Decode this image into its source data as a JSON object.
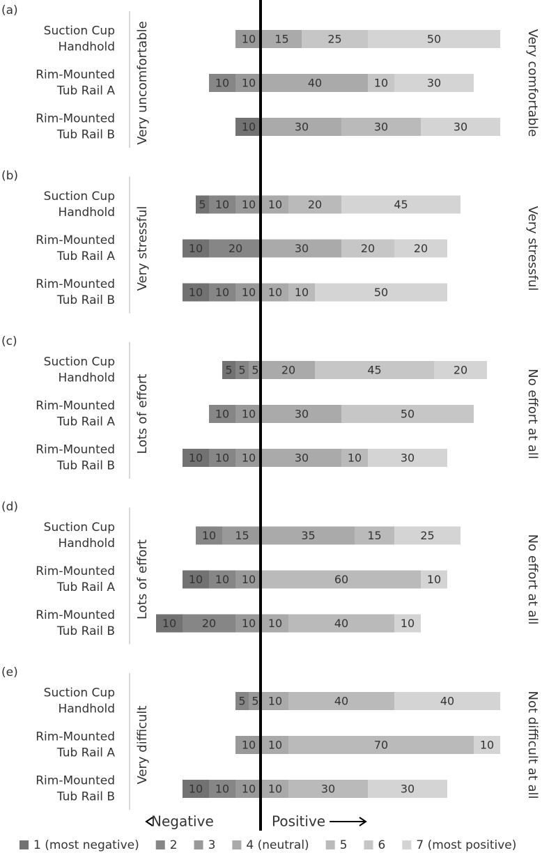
{
  "chart_data": {
    "type": "diverging_bar",
    "xlim": [
      -40,
      90
    ],
    "negative_count": 3,
    "panels": [
      {
        "label": "(a)",
        "left_label": "Very uncomfortable",
        "right_label": "Very comfortable"
      },
      {
        "label": "(b)",
        "left_label": "Very stressful",
        "right_label": "Very stressful"
      },
      {
        "label": "(c)",
        "left_label": "Lots of effort",
        "right_label": "No effort at all"
      },
      {
        "label": "(d)",
        "left_label": "Lots of effort",
        "right_label": "No effort at all"
      },
      {
        "label": "(e)",
        "left_label": "Very difficult",
        "right_label": "Not difficult at all"
      }
    ],
    "categories": [
      "Suction Cup\nHandhold",
      "Rim-Mounted\nTub Rail A",
      "Rim-Mounted\nTub Rail B",
      "Suction Cup\nHandhold",
      "Rim-Mounted\nTub Rail A",
      "Rim-Mounted\nTub Rail B",
      "Suction Cup\nHandhold",
      "Rim-Mounted\nTub Rail A",
      "Rim-Mounted\nTub Rail B",
      "Suction Cup\nHandhold",
      "Rim-Mounted\nTub Rail A",
      "Rim-Mounted\nTub Rail B",
      "Suction Cup\nHandhold",
      "Rim-Mounted\nTub Rail A",
      "Rim-Mounted\nTub Rail B"
    ],
    "series": [
      {
        "name": "1 (most negative)",
        "color": "#727272",
        "values": [
          null,
          null,
          10,
          5,
          10,
          10,
          5,
          null,
          10,
          null,
          10,
          10,
          null,
          null,
          10
        ]
      },
      {
        "name": "2",
        "color": "#868686",
        "values": [
          null,
          10,
          null,
          10,
          20,
          10,
          5,
          10,
          10,
          10,
          10,
          20,
          5,
          null,
          10
        ]
      },
      {
        "name": "3",
        "color": "#999999",
        "values": [
          10,
          10,
          null,
          10,
          null,
          10,
          5,
          10,
          10,
          15,
          10,
          10,
          5,
          10,
          10
        ]
      },
      {
        "name": "4 (neutral)",
        "color": "#aaaaaa",
        "values": [
          15,
          40,
          30,
          10,
          30,
          10,
          20,
          30,
          30,
          35,
          null,
          10,
          10,
          10,
          10
        ]
      },
      {
        "name": "5",
        "color": "#bababa",
        "values": [
          null,
          null,
          30,
          20,
          null,
          10,
          null,
          null,
          10,
          15,
          60,
          40,
          40,
          70,
          30
        ]
      },
      {
        "name": "6",
        "color": "#c6c6c6",
        "values": [
          25,
          10,
          null,
          null,
          20,
          null,
          45,
          50,
          null,
          null,
          null,
          null,
          null,
          null,
          null
        ]
      },
      {
        "name": "7 (most positive)",
        "color": "#d4d4d4",
        "values": [
          50,
          30,
          30,
          45,
          20,
          50,
          20,
          null,
          30,
          25,
          10,
          10,
          40,
          10,
          30
        ]
      }
    ],
    "axis_labels": {
      "negative": "Negative",
      "positive": "Positive"
    }
  }
}
